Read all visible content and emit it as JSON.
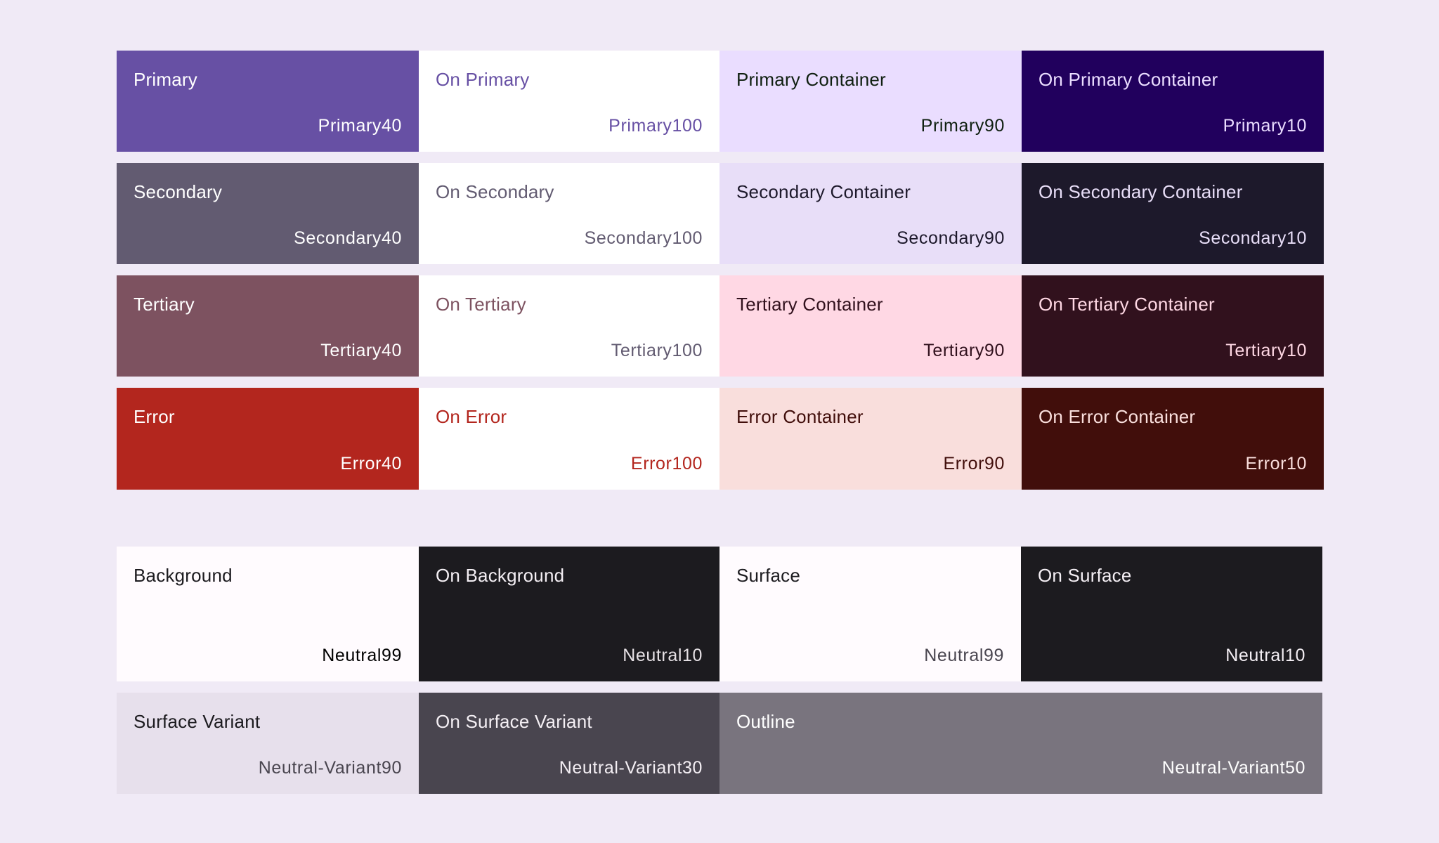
{
  "page": {
    "background": "#f0eaf6"
  },
  "accent_tiles": [
    {
      "id": "primary",
      "role": "Primary",
      "tone": "Primary40",
      "bg": "#6750a4",
      "fg": "#ffffff",
      "tone_fg": "#ffffff"
    },
    {
      "id": "on-primary",
      "role": "On Primary",
      "tone": "Primary100",
      "bg": "#ffffff",
      "fg": "#6750a4",
      "tone_fg": "#6750a4"
    },
    {
      "id": "primary-container",
      "role": "Primary Container",
      "tone": "Primary90",
      "bg": "#eaddff",
      "fg": "#0f1f10",
      "tone_fg": "#0f1f10"
    },
    {
      "id": "on-primary-container",
      "role": "On Primary Container",
      "tone": "Primary10",
      "bg": "#21005d",
      "fg": "#eaddff",
      "tone_fg": "#eaddff"
    },
    {
      "id": "secondary",
      "role": "Secondary",
      "tone": "Secondary40",
      "bg": "#625b71",
      "fg": "#ffffff",
      "tone_fg": "#ffffff"
    },
    {
      "id": "on-secondary",
      "role": "On Secondary",
      "tone": "Secondary100",
      "bg": "#ffffff",
      "fg": "#625b71",
      "tone_fg": "#625b71"
    },
    {
      "id": "secondary-container",
      "role": "Secondary Container",
      "tone": "Secondary90",
      "bg": "#e8def8",
      "fg": "#1d192b",
      "tone_fg": "#1d192b"
    },
    {
      "id": "on-secondary-container",
      "role": "On Secondary Container",
      "tone": "Secondary10",
      "bg": "#1d192b",
      "fg": "#e8def8",
      "tone_fg": "#e8def8"
    },
    {
      "id": "tertiary",
      "role": "Tertiary",
      "tone": "Tertiary40",
      "bg": "#7d5260",
      "fg": "#ffffff",
      "tone_fg": "#ffffff"
    },
    {
      "id": "on-tertiary",
      "role": "On Tertiary",
      "tone": "Tertiary100",
      "bg": "#ffffff",
      "fg": "#7d5260",
      "tone_fg": "#625b71"
    },
    {
      "id": "tertiary-container",
      "role": "Tertiary Container",
      "tone": "Tertiary90",
      "bg": "#ffd8e4",
      "fg": "#31111d",
      "tone_fg": "#31111d"
    },
    {
      "id": "on-tertiary-container",
      "role": "On Tertiary Container",
      "tone": "Tertiary10",
      "bg": "#31111d",
      "fg": "#ffd8e4",
      "tone_fg": "#ffd8e4"
    },
    {
      "id": "error",
      "role": "Error",
      "tone": "Error40",
      "bg": "#b3261e",
      "fg": "#ffffff",
      "tone_fg": "#ffffff"
    },
    {
      "id": "on-error",
      "role": "On Error",
      "tone": "Error100",
      "bg": "#ffffff",
      "fg": "#b3261e",
      "tone_fg": "#b3261e"
    },
    {
      "id": "error-container",
      "role": "Error Container",
      "tone": "Error90",
      "bg": "#f9dedc",
      "fg": "#410e0b",
      "tone_fg": "#410e0b"
    },
    {
      "id": "on-error-container",
      "role": "On Error Container",
      "tone": "Error10",
      "bg": "#410e0b",
      "fg": "#f9dedc",
      "tone_fg": "#f9dedc"
    }
  ],
  "neutral_tiles": [
    {
      "id": "background",
      "role": "Background",
      "tone": "Neutral99",
      "bg": "#fffbfe",
      "fg": "#1c1b1f",
      "tone_fg": "#000000",
      "span": 1
    },
    {
      "id": "on-background",
      "role": "On Background",
      "tone": "Neutral10",
      "bg": "#1c1b1f",
      "fg": "#f4eff4",
      "tone_fg": "#e6e1e5",
      "span": 1
    },
    {
      "id": "surface",
      "role": "Surface",
      "tone": "Neutral99",
      "bg": "#fffbfe",
      "fg": "#1c1b1f",
      "tone_fg": "#49454f",
      "span": 1
    },
    {
      "id": "on-surface",
      "role": "On Surface",
      "tone": "Neutral10",
      "bg": "#1c1b1f",
      "fg": "#f4eff4",
      "tone_fg": "#f4eff4",
      "span": 1
    },
    {
      "id": "surface-variant",
      "role": "Surface Variant",
      "tone": "Neutral-Variant90",
      "bg": "#e7e0ec",
      "fg": "#1c1b1f",
      "tone_fg": "#49454f",
      "span": 1
    },
    {
      "id": "on-surface-variant",
      "role": "On Surface Variant",
      "tone": "Neutral-Variant30",
      "bg": "#49454f",
      "fg": "#f4eff4",
      "tone_fg": "#f4eff4",
      "span": 1
    },
    {
      "id": "outline",
      "role": "Outline",
      "tone": "Neutral-Variant50",
      "bg": "#79747e",
      "fg": "#ffffff",
      "tone_fg": "#ffffff",
      "span": 2
    }
  ]
}
